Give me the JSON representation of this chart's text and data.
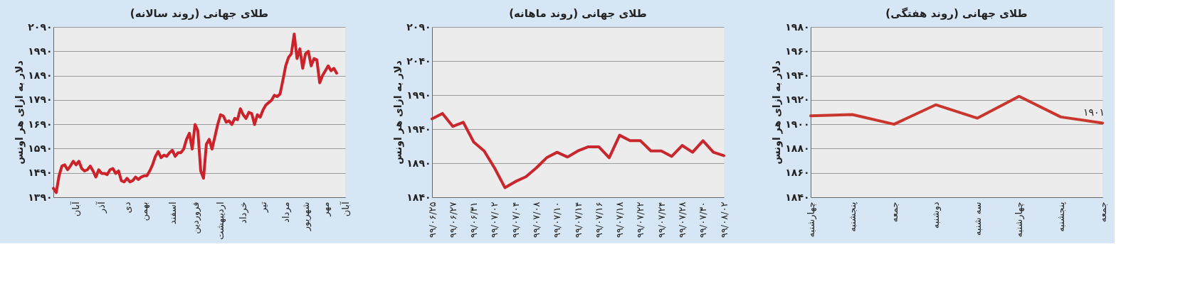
{
  "chart_data": [
    {
      "type": "line",
      "title": "طلای جهانی (روند سالانه)",
      "ylabel": "دلار به ازای هر اونس",
      "categories": [
        null,
        null,
        null,
        null,
        null,
        null,
        null,
        null,
        "آبان",
        null,
        null,
        null,
        null,
        null,
        null,
        null,
        null,
        "آذر",
        null,
        null,
        null,
        null,
        null,
        null,
        null,
        null,
        "دی",
        null,
        null,
        null,
        null,
        null,
        "بهمن",
        null,
        null,
        null,
        null,
        null,
        null,
        null,
        null,
        null,
        "اسفند",
        null,
        null,
        null,
        null,
        null,
        null,
        null,
        "فروردین",
        null,
        null,
        null,
        null,
        null,
        null,
        null,
        null,
        "اردیبهشت",
        null,
        null,
        null,
        null,
        null,
        null,
        null,
        "خرداد",
        null,
        null,
        null,
        null,
        null,
        null,
        "تیر",
        null,
        null,
        null,
        null,
        null,
        null,
        null,
        "مرداد",
        null,
        null,
        null,
        null,
        null,
        null,
        "شهریور",
        null,
        null,
        null,
        null,
        null,
        null,
        "مهر",
        null,
        null,
        null,
        null,
        null,
        null,
        "آبان"
      ],
      "series": [
        {
          "color": "#cc2229",
          "values": [
            1427,
            1409,
            1478,
            1518,
            1523,
            1503,
            1518,
            1538,
            1523,
            1538,
            1508,
            1498,
            1503,
            1518,
            1498,
            1473,
            1503,
            1488,
            1488,
            1483,
            1503,
            1508,
            1488,
            1498,
            1458,
            1453,
            1468,
            1453,
            1458,
            1473,
            1463,
            1473,
            1478,
            1478,
            1498,
            1523,
            1558,
            1578,
            1553,
            1563,
            1558,
            1573,
            1583,
            1558,
            1573,
            1573,
            1588,
            1628,
            1653,
            1588,
            1689,
            1663,
            1498,
            1468,
            1608,
            1628,
            1588,
            1638,
            1689,
            1729,
            1724,
            1699,
            1704,
            1689,
            1714,
            1709,
            1754,
            1729,
            1714,
            1739,
            1734,
            1689,
            1729,
            1719,
            1749,
            1769,
            1779,
            1789,
            1809,
            1804,
            1814,
            1870,
            1930,
            1965,
            1980,
            2061,
            1960,
            2000,
            1920,
            1980,
            1990,
            1930,
            1960,
            1955,
            1860,
            1890,
            1910,
            1930,
            1910,
            1920,
            1900,
            null,
            null,
            null
          ]
        }
      ],
      "ylim": [
        1390,
        2090
      ],
      "yticks": [
        {
          "value": 1390,
          "label": "۱۳۹۰"
        },
        {
          "value": 1490,
          "label": "۱۴۹۰"
        },
        {
          "value": 1590,
          "label": "۱۵۹۰"
        },
        {
          "value": 1690,
          "label": "۱۶۹۰"
        },
        {
          "value": 1790,
          "label": "۱۷۹۰"
        },
        {
          "value": 1890,
          "label": "۱۸۹۰"
        },
        {
          "value": 1990,
          "label": "۱۹۹۰"
        },
        {
          "value": 2090,
          "label": "۲۰۹۰"
        }
      ],
      "grid": "y"
    },
    {
      "type": "line",
      "title": "طلای جهانی (روند ماهانه)",
      "ylabel": "دلار به ازای هر اونس",
      "categories": [
        "۹۹/۰۶/۲۵",
        null,
        "۹۹/۰۶/۲۷",
        null,
        "۹۹/۰۶/۳۱",
        null,
        "۹۹/۰۷/۰۲",
        null,
        "۹۹/۰۷/۰۴",
        null,
        "۹۹/۰۷/۰۸",
        null,
        "۹۹/۰۷/۱۰",
        null,
        "۹۹/۰۷/۱۴",
        null,
        "۹۹/۰۷/۱۶",
        null,
        "۹۹/۰۷/۱۸",
        null,
        "۹۹/۰۷/۲۲",
        null,
        "۹۹/۰۷/۲۴",
        null,
        "۹۹/۰۷/۲۸",
        null,
        "۹۹/۰۷/۳۰",
        null,
        "۹۹/۰۸/۰۲"
      ],
      "series": [
        {
          "color": "#c8272d",
          "values": [
            1955,
            1963,
            1944,
            1950,
            1921,
            1908,
            1883,
            1854,
            1863,
            1870,
            1883,
            1898,
            1906,
            1899,
            1908,
            1914,
            1914,
            1898,
            1931,
            1923,
            1923,
            1908,
            1908,
            1900,
            1916,
            1906,
            1923,
            1906,
            1901
          ]
        }
      ],
      "ylim": [
        1840,
        2090
      ],
      "yticks": [
        {
          "value": 1840,
          "label": "۱۸۴۰"
        },
        {
          "value": 1890,
          "label": "۱۸۹۰"
        },
        {
          "value": 1940,
          "label": "۱۹۴۰"
        },
        {
          "value": 1990,
          "label": "۱۹۹۰"
        },
        {
          "value": 2040,
          "label": "۲۰۴۰"
        },
        {
          "value": 2090,
          "label": "۲۰۹۰"
        }
      ],
      "grid": "y"
    },
    {
      "type": "line",
      "title": "طلای جهانی (روند هفتگی)",
      "ylabel": "دلار به ازای هر اونس",
      "categories": [
        "چهارشنبه",
        "پنجشنبه",
        "جمعه",
        "دوشنبه",
        "سه شنبه",
        "چهارشنبه",
        "پنجشنبه",
        "جمعه"
      ],
      "series": [
        {
          "color": "#c8362d",
          "values": [
            1907,
            1908,
            1900,
            1916,
            1905,
            1923,
            1906,
            1901
          ],
          "value_labels": [
            null,
            null,
            null,
            null,
            null,
            null,
            null,
            "۱۹۰۱"
          ]
        }
      ],
      "ylim": [
        1840,
        1980
      ],
      "yticks": [
        {
          "value": 1840,
          "label": "۱۸۴۰"
        },
        {
          "value": 1860,
          "label": "۱۸۶۰"
        },
        {
          "value": 1880,
          "label": "۱۸۸۰"
        },
        {
          "value": 1900,
          "label": "۱۹۰۰"
        },
        {
          "value": 1920,
          "label": "۱۹۲۰"
        },
        {
          "value": 1940,
          "label": "۱۹۴۰"
        },
        {
          "value": 1960,
          "label": "۱۹۶۰"
        },
        {
          "value": 1980,
          "label": "۱۹۸۰"
        }
      ],
      "grid": "y"
    }
  ]
}
